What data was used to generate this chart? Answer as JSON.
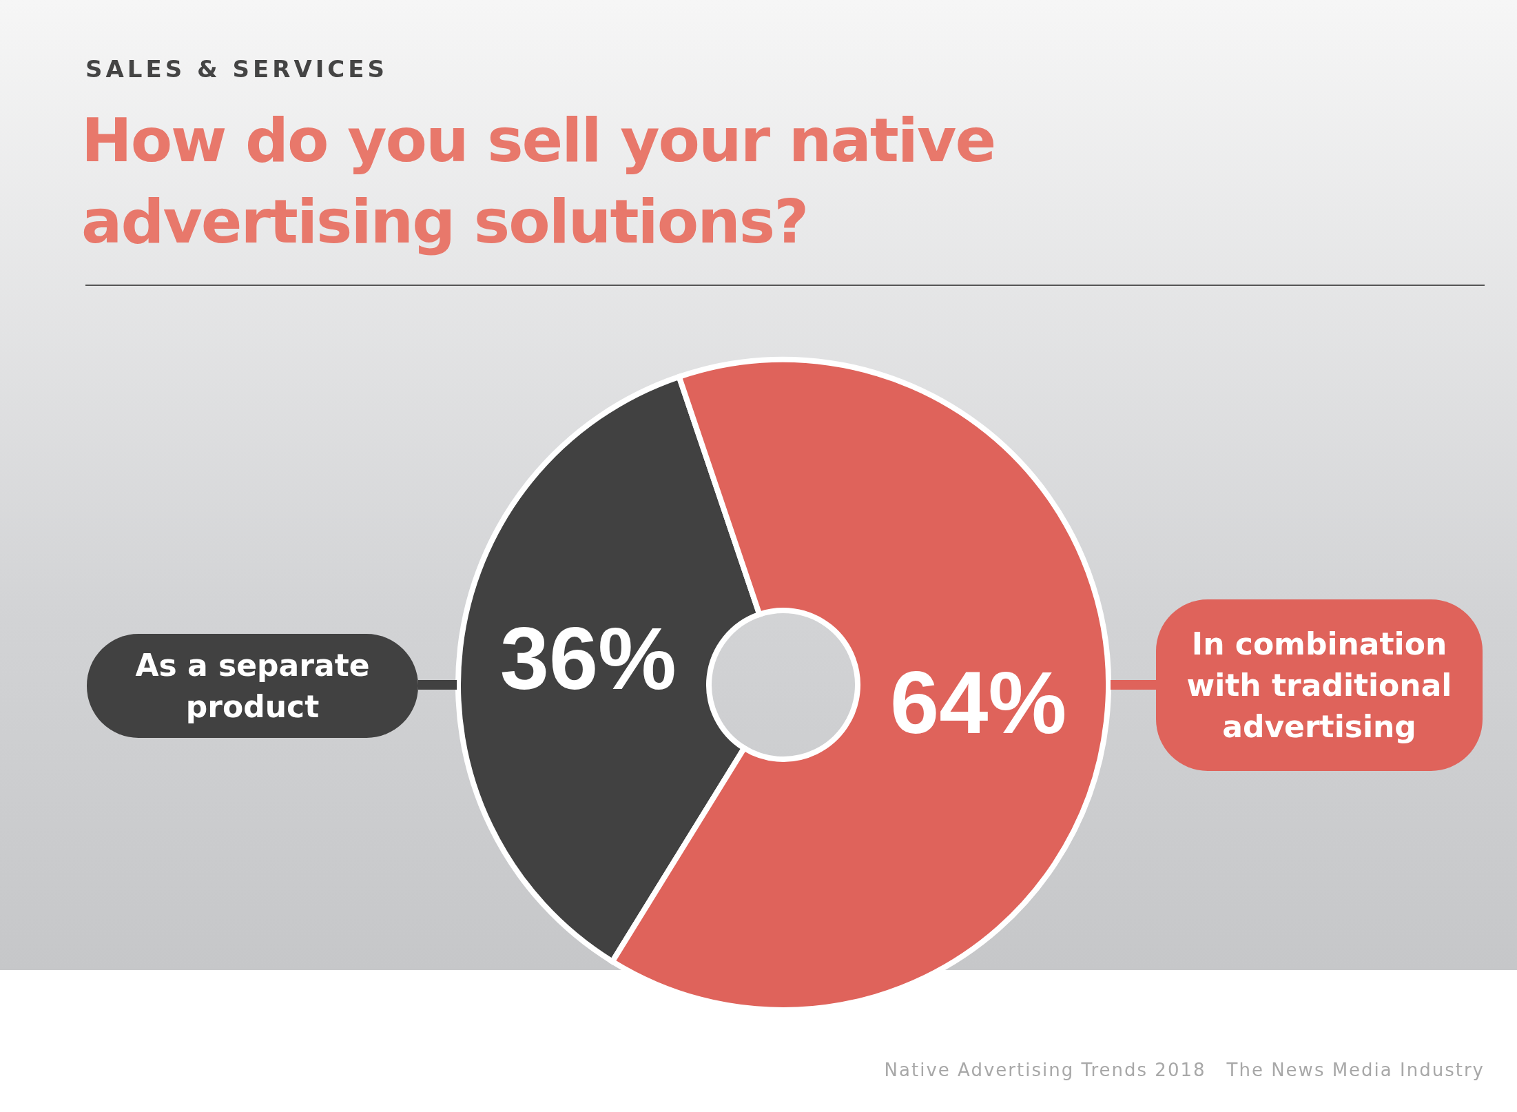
{
  "chart_data": {
    "type": "donut",
    "subtitle": "SALES & SERVICES",
    "title": "How do you sell your native advertising solutions?",
    "categories": [
      "As a separate product",
      "In combination with traditional advertising"
    ],
    "values": [
      36,
      64
    ],
    "colors": [
      "#414141",
      "#df635b"
    ],
    "value_labels": [
      "36%",
      "64%"
    ],
    "annotations": [
      "Native Advertising Trends 2018",
      "The News Media Industry"
    ]
  }
}
